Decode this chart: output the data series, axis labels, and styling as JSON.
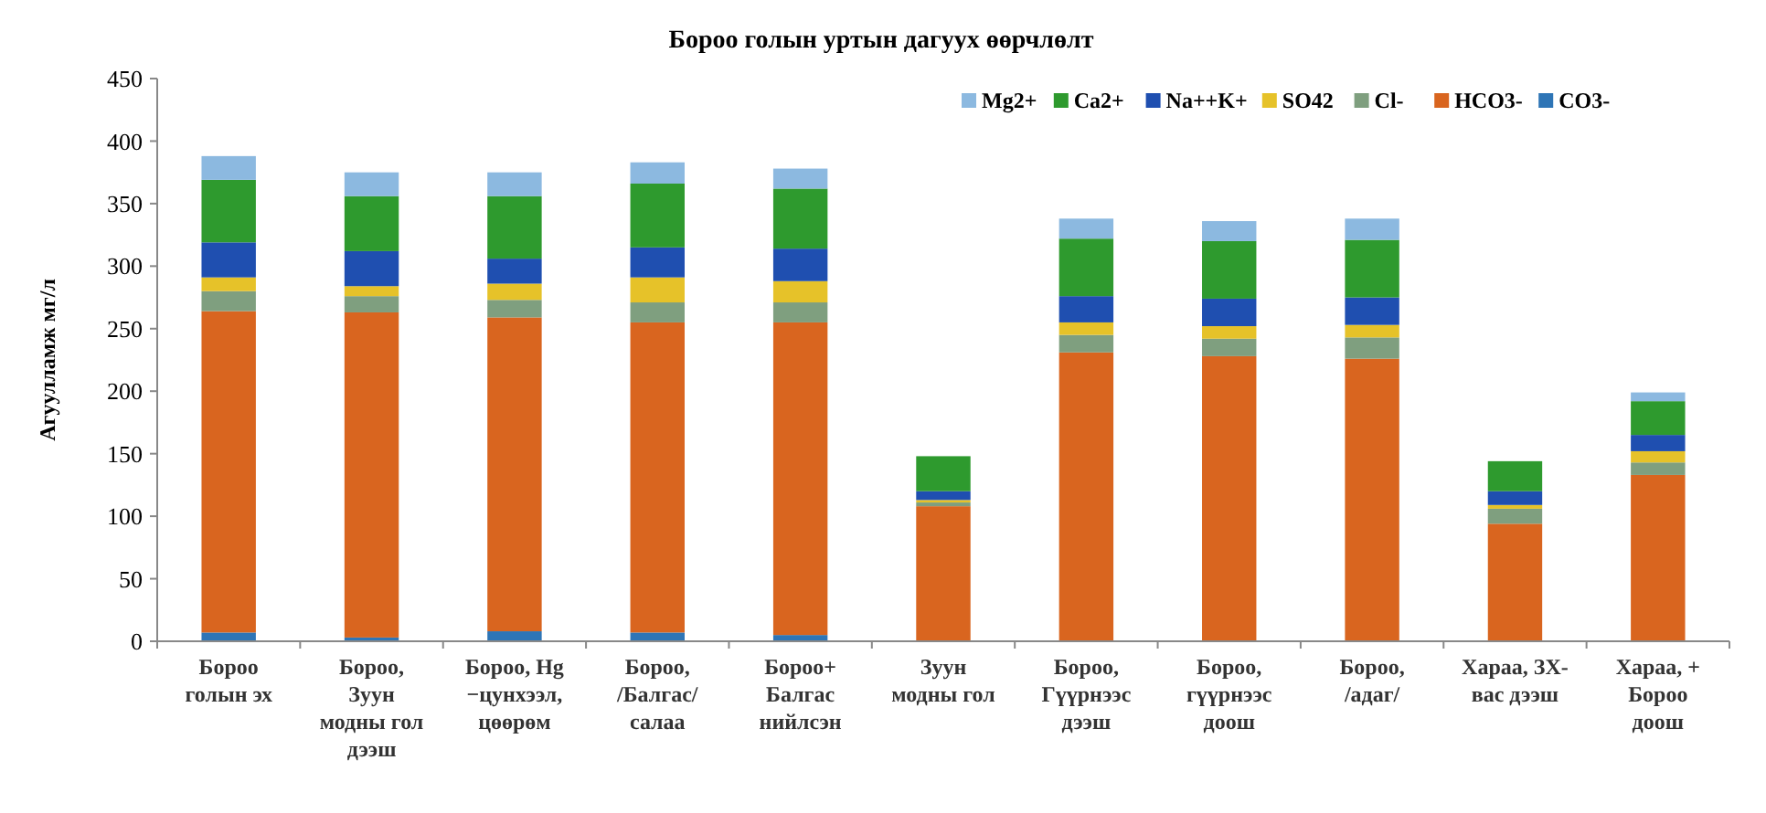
{
  "chart_data": {
    "type": "bar",
    "stacked": true,
    "title": "Бороо голын уртын дагуух өөрчлөлт",
    "ylabel": "Агуулламж мг/л",
    "categories": [
      "Бороо\nголын эх",
      "Бороо,\nЗуун\nмодны гол\nдээш",
      "Бороо, Нg\n−цунхээл,\nцөөрөм",
      "Бороо,\n/Балгас/\nсалаа",
      "Бороо+\nБалгас\nнийлсэн",
      "Зуун\nмодны гол",
      "Бороо,\nГүүрнээс\nдээш",
      "Бороо,\nгүүрнээс\nдоош",
      "Бороо,\n/адаг/",
      "Хараа, ЗХ-\nвас дээш",
      "Хараа, +\nБороо\nдоош"
    ],
    "series": [
      {
        "name": "CO3-",
        "color": "#2e75b6",
        "values": [
          7,
          3,
          8,
          7,
          5,
          0,
          0,
          0,
          0,
          0,
          0
        ]
      },
      {
        "name": "HCO3-",
        "color": "#d9651f",
        "values": [
          257,
          260,
          251,
          248,
          250,
          108,
          231,
          228,
          226,
          94,
          133
        ]
      },
      {
        "name": "Cl-",
        "color": "#7f9f7f",
        "values": [
          16,
          13,
          14,
          16,
          16,
          3,
          14,
          14,
          17,
          12,
          10
        ]
      },
      {
        "name": "SO42",
        "color": "#e6c229",
        "values": [
          11,
          8,
          13,
          20,
          17,
          2,
          10,
          10,
          10,
          3,
          9
        ]
      },
      {
        "name": "Na++K+",
        "color": "#1f4fb0",
        "values": [
          28,
          28,
          20,
          24,
          26,
          7,
          21,
          22,
          22,
          11,
          13
        ]
      },
      {
        "name": "Ca2+",
        "color": "#2e9a2e",
        "values": [
          50,
          44,
          50,
          51,
          48,
          28,
          46,
          46,
          46,
          24,
          27
        ]
      },
      {
        "name": "Mg2+",
        "color": "#8cb9e0",
        "values": [
          19,
          19,
          19,
          17,
          16,
          0,
          16,
          16,
          17,
          0,
          7
        ]
      }
    ],
    "ylim": [
      0,
      450
    ],
    "yticks": [
      0,
      50,
      100,
      150,
      200,
      250,
      300,
      350,
      400,
      450
    ],
    "grid": false,
    "legend": "top right"
  }
}
